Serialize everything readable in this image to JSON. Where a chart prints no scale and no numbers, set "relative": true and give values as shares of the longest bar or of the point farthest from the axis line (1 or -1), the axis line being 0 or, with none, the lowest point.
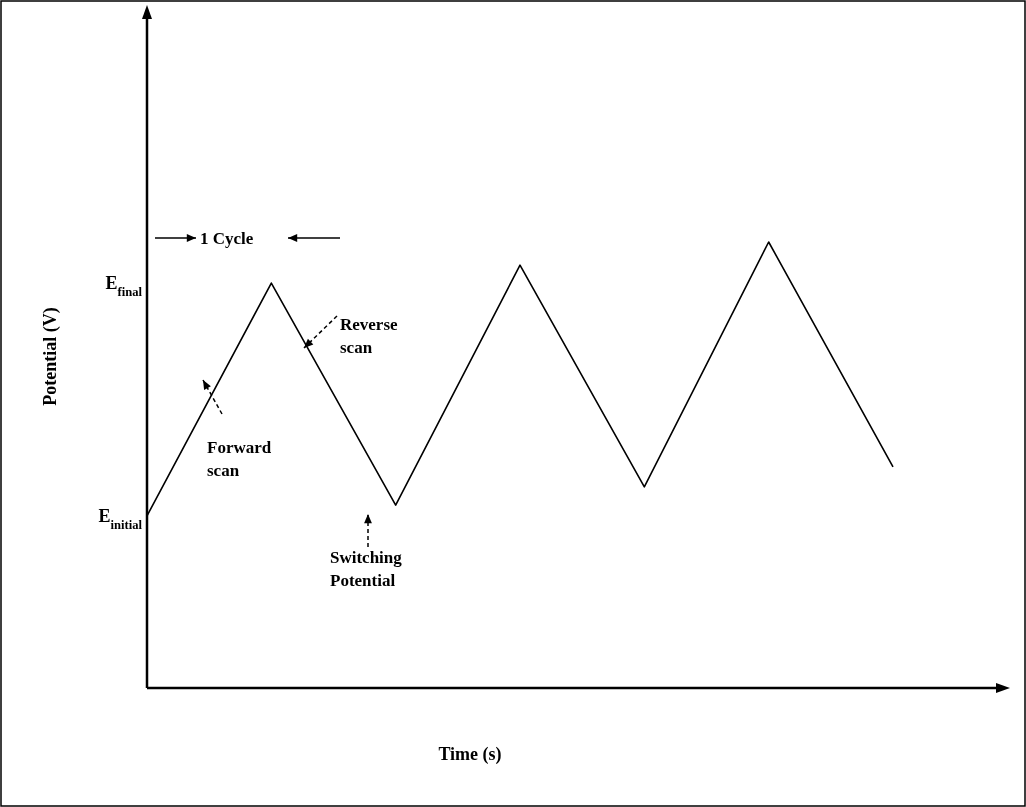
{
  "chart_data": {
    "type": "line",
    "relative": true,
    "xlabel": "Time (s)",
    "ylabel": "Potential (V)",
    "categories": [
      null,
      null,
      null,
      null,
      null,
      null,
      null
    ],
    "series": [
      {
        "color": "#000000",
        "values": [
          0.386,
          0.908,
          0.41,
          0.948,
          0.451,
          1,
          0.496
        ]
      }
    ],
    "annotations": [
      "1 Cycle",
      "Reverse scan",
      "Forward scan",
      "Switching Potential",
      "E$_{initial}$",
      "E$_{final}$"
    ],
    "line_style": "solid",
    "marker": "none"
  }
}
